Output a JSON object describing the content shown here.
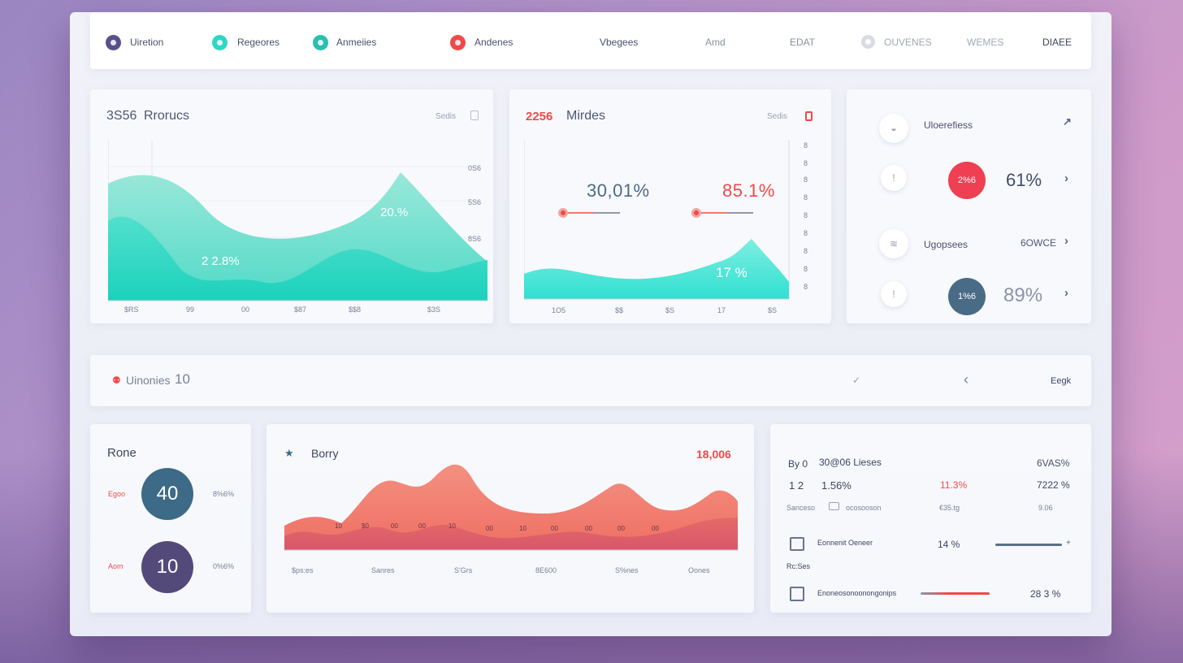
{
  "colors": {
    "accent_teal": "#2fd6c6",
    "accent_red": "#ef4a4a",
    "accent_navy": "#3d6a86",
    "accent_purple": "#544a7a",
    "accent_coral": "#f07b6c"
  },
  "nav": {
    "items": [
      {
        "label": "Uiretion",
        "icon": "user-dot-icon",
        "color": "#5a4f8c"
      },
      {
        "label": "Regeores",
        "icon": "teal-dot-icon",
        "color": "#2fd6c6"
      },
      {
        "label": "Anmeiies",
        "icon": "teal-dot-icon",
        "color": "#2abfb0"
      },
      {
        "label": "Andenes",
        "icon": "red-dot-icon",
        "color": "#ef4a4a"
      },
      {
        "label": "Vbegees"
      },
      {
        "label": "Amd"
      },
      {
        "label": "EDAT"
      },
      {
        "label": "OUVENES",
        "icon": "grey-dot-icon"
      },
      {
        "label": "WEMES"
      },
      {
        "label": "DIAEE"
      }
    ]
  },
  "card1": {
    "title_num": "3S56",
    "title": "Rrorucs",
    "action": "Sedis",
    "y_ticks": [
      "0S6",
      "5S6",
      "8S6"
    ],
    "x_ticks": [
      "$RS",
      "99",
      "00",
      "$87",
      "$$8",
      "$3S"
    ],
    "label_a": "20.%",
    "label_b": "2 2.8%"
  },
  "card2": {
    "title_num": "2256",
    "title": "Mirdes",
    "action": "Sedis",
    "metric_a": "30,01%",
    "metric_b": "85.1%",
    "metric_c": "17 %",
    "x_ticks": [
      "1O5",
      "$$",
      "$S",
      "17",
      "$S"
    ],
    "y_ticks": [
      "8",
      "8",
      "8",
      "8",
      "8",
      "8",
      "8",
      "8",
      "8"
    ]
  },
  "card3": {
    "row1_label": "Uloerefiess",
    "row2_badge": "2%6",
    "row2_value": "61%",
    "row3_label": "Ugopsees",
    "row3_value": "6OWCE",
    "row4_badge": "1%6",
    "row4_value": "89%"
  },
  "banner": {
    "label": "Uinonies",
    "count": "10",
    "action": "Eegk"
  },
  "card4": {
    "title": "Rone",
    "item1_label": "Egoo",
    "item1_value": "40",
    "item1_pct": "8%6%",
    "item2_label": "Aom",
    "item2_value": "10",
    "item2_pct": "0%6%"
  },
  "card5": {
    "title": "Borry",
    "value": "18,006",
    "x_ticks": [
      "$ps:es",
      "Sanres",
      "S'Grs",
      "8E600",
      "S%nes",
      "Oones"
    ],
    "inner_ticks": [
      "10",
      "$0",
      "00",
      "00",
      "10",
      "00",
      "10",
      "00",
      "00",
      "00",
      "00",
      "00"
    ]
  },
  "card6": {
    "head_left": "By 0",
    "head_mid": "30@06 Lieses",
    "head_right": "6VAS%",
    "row1": [
      "1 2",
      "1.56%",
      "11.3%",
      "7222 %"
    ],
    "row2": [
      "Sanceso",
      "ocosooson",
      "€35.tg",
      "9.06"
    ],
    "row3_label": "Eonnenit Oeneer",
    "row3_sub": "Rc:Ses",
    "row3_value": "14 %",
    "row4_label": "Enoneosonoonongonips",
    "row4_value": "28 3 %"
  }
}
